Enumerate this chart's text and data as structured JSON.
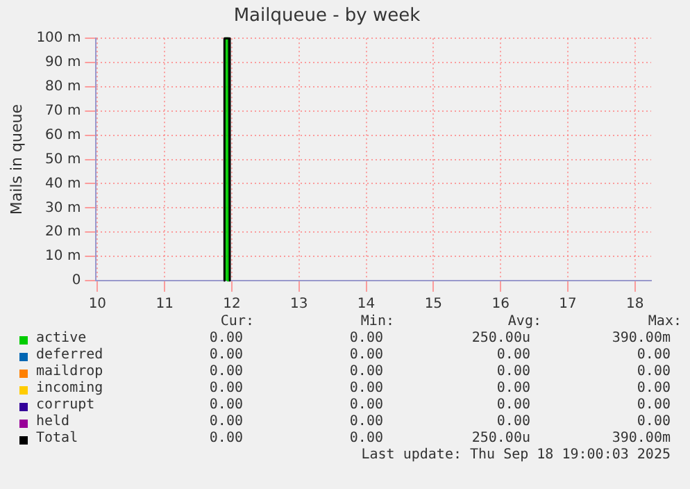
{
  "chart_data": {
    "type": "line",
    "title": "Mailqueue - by week",
    "ylabel": "Mails in queue",
    "series": [
      {
        "name": "active",
        "color": "#00cc00",
        "type": "area",
        "x": [
          11.905,
          11.905,
          11.945,
          11.945
        ],
        "values": [
          0,
          100,
          100,
          0
        ]
      },
      {
        "name": "deferred",
        "color": "#0066b3"
      },
      {
        "name": "maildrop",
        "color": "#ff8000"
      },
      {
        "name": "incoming",
        "color": "#ffcc00"
      },
      {
        "name": "corrupt",
        "color": "#330099"
      },
      {
        "name": "held",
        "color": "#990099"
      },
      {
        "name": "Total",
        "color": "#000000",
        "x": [
          11.88,
          11.89,
          11.96,
          11.97
        ],
        "values": [
          0,
          100,
          100,
          0
        ]
      }
    ],
    "xlim": [
      9.98,
      18.24
    ],
    "xticks": [
      10,
      11,
      12,
      13,
      14,
      15,
      16,
      17,
      18
    ],
    "ylim": [
      0,
      100
    ],
    "yticks": [
      0,
      {
        "value": 10,
        "label": "10 m"
      },
      {
        "value": 20,
        "label": "20 m"
      },
      {
        "value": 30,
        "label": "30 m"
      },
      {
        "value": 40,
        "label": "40 m"
      },
      {
        "value": 50,
        "label": "50 m"
      },
      {
        "value": 60,
        "label": "60 m"
      },
      {
        "value": 70,
        "label": "70 m"
      },
      {
        "value": 80,
        "label": "80 m"
      },
      {
        "value": 90,
        "label": "90 m"
      },
      {
        "value": 100,
        "label": "100 m"
      }
    ],
    "grid": true,
    "legend": "bottom",
    "marker": "none",
    "line_style": "solid",
    "annotations": [
      "Cur:",
      "Min:",
      "Avg:",
      "Max:",
      "0.00",
      "0.00",
      "250.00u",
      "390.00m",
      "0.00",
      "0.00",
      "0.00",
      "0.00",
      "0.00",
      "0.00",
      "0.00",
      "0.00",
      "0.00",
      "0.00",
      "0.00",
      "0.00",
      "0.00",
      "0.00",
      "0.00",
      "0.00",
      "0.00",
      "0.00",
      "0.00",
      "0.00",
      "0.00",
      "0.00",
      "250.00u",
      "390.00m",
      "Last update: Thu Sep 18 19:00:03 2025"
    ]
  }
}
